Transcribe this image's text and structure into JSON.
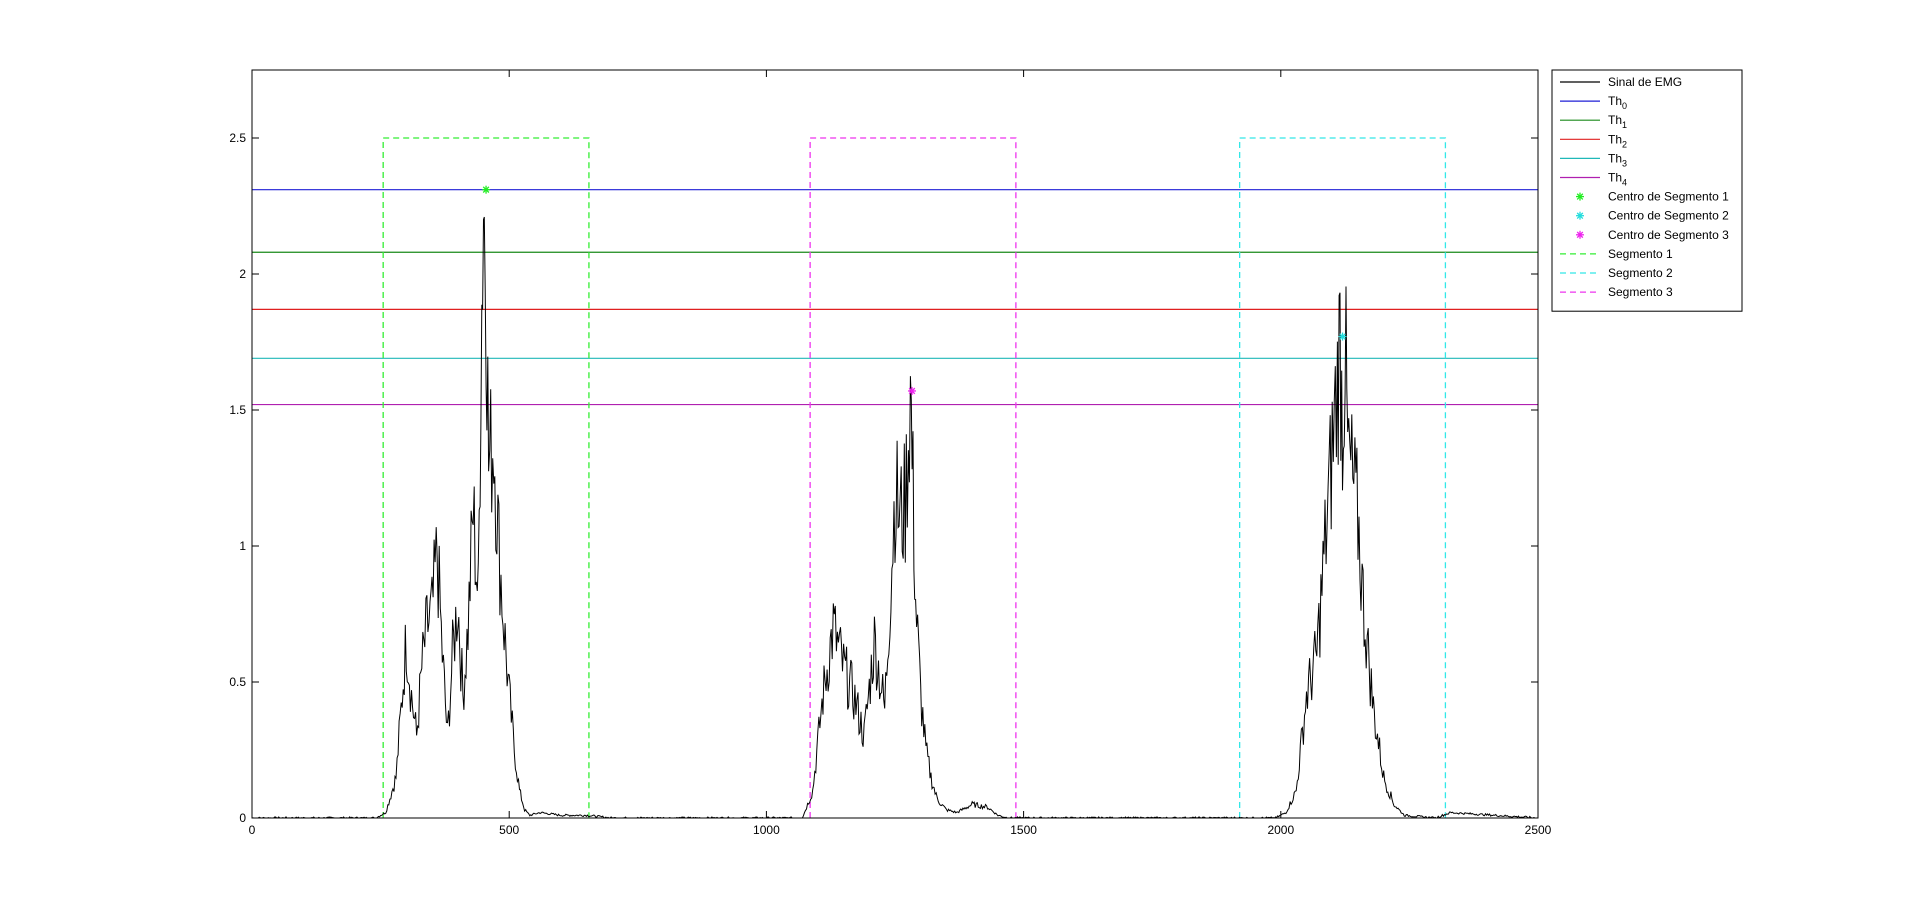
{
  "chart_data": {
    "type": "line",
    "title": "",
    "xlabel": "",
    "ylabel": "",
    "xlim": [
      0,
      2500
    ],
    "ylim": [
      0,
      2.75
    ],
    "xticks": [
      0,
      500,
      1000,
      1500,
      2000,
      2500
    ],
    "yticks": [
      0,
      0.5,
      1,
      1.5,
      2,
      2.5
    ],
    "xtick_labels": [
      "0",
      "500",
      "1000",
      "1500",
      "2000",
      "2500"
    ],
    "ytick_labels": [
      "0",
      "0.5",
      "1",
      "1.5",
      "2",
      "2.5"
    ],
    "grid": false,
    "legend_position": "outside-top-right",
    "signal": {
      "name": "Sinal de EMG",
      "color": "#000000",
      "x": [
        0,
        240,
        260,
        280,
        290,
        300,
        310,
        320,
        330,
        340,
        350,
        360,
        370,
        380,
        390,
        400,
        410,
        420,
        430,
        440,
        445,
        450,
        455,
        460,
        470,
        480,
        490,
        500,
        510,
        520,
        530,
        540,
        560,
        600,
        650,
        700,
        1000,
        1070,
        1090,
        1110,
        1130,
        1150,
        1170,
        1190,
        1210,
        1230,
        1250,
        1260,
        1270,
        1280,
        1285,
        1290,
        1300,
        1310,
        1320,
        1330,
        1340,
        1350,
        1370,
        1400,
        1430,
        1450,
        1470,
        1500,
        1900,
        1990,
        2010,
        2030,
        2050,
        2070,
        2090,
        2110,
        2115,
        2120,
        2125,
        2130,
        2150,
        2160,
        2180,
        2200,
        2220,
        2240,
        2300,
        2330,
        2500
      ],
      "y": [
        0.0,
        0.0,
        0.02,
        0.15,
        0.4,
        0.66,
        0.45,
        0.3,
        0.55,
        0.7,
        0.75,
        0.98,
        0.6,
        0.3,
        0.6,
        0.8,
        0.45,
        0.7,
        1.13,
        0.8,
        1.7,
        2.3,
        2.0,
        1.3,
        1.4,
        1.0,
        0.7,
        0.45,
        0.25,
        0.1,
        0.03,
        0.01,
        0.02,
        0.01,
        0.01,
        0.0,
        0.0,
        0.0,
        0.1,
        0.45,
        0.7,
        0.55,
        0.45,
        0.3,
        0.65,
        0.4,
        1.2,
        1.1,
        1.15,
        1.57,
        1.2,
        0.8,
        0.45,
        0.25,
        0.15,
        0.08,
        0.05,
        0.03,
        0.02,
        0.05,
        0.04,
        0.01,
        0.0,
        0.0,
        0.0,
        0.0,
        0.02,
        0.1,
        0.45,
        0.6,
        1.1,
        1.6,
        1.75,
        1.45,
        1.74,
        1.35,
        1.1,
        0.8,
        0.4,
        0.15,
        0.05,
        0.01,
        0.0,
        0.02,
        0.0
      ]
    },
    "thresholds": [
      {
        "name": "Th",
        "sub": "0",
        "value": 2.31,
        "color": "#1f1fd6"
      },
      {
        "name": "Th",
        "sub": "1",
        "value": 2.08,
        "color": "#1a8a1a"
      },
      {
        "name": "Th",
        "sub": "2",
        "value": 1.87,
        "color": "#e02020"
      },
      {
        "name": "Th",
        "sub": "3",
        "value": 1.69,
        "color": "#20b8b8"
      },
      {
        "name": "Th",
        "sub": "4",
        "value": 1.52,
        "color": "#b020b0"
      }
    ],
    "centers": [
      {
        "name": "Centro de Segmento 1",
        "x": 455,
        "y": 2.31,
        "color": "#22ee22"
      },
      {
        "name": "Centro de Segmento 2",
        "x": 2120,
        "y": 1.77,
        "color": "#22dddd"
      },
      {
        "name": "Centro de Segmento 3",
        "x": 1283,
        "y": 1.57,
        "color": "#ee22ee"
      }
    ],
    "segments": [
      {
        "name": "Segmento 1",
        "x0": 255,
        "x1": 655,
        "height": 2.5,
        "color": "#33ee33"
      },
      {
        "name": "Segmento 2",
        "x0": 1920,
        "x1": 2320,
        "height": 2.5,
        "color": "#33e8e8"
      },
      {
        "name": "Segmento 3",
        "x0": 1085,
        "x1": 1485,
        "height": 2.5,
        "color": "#ee33ee"
      }
    ]
  }
}
